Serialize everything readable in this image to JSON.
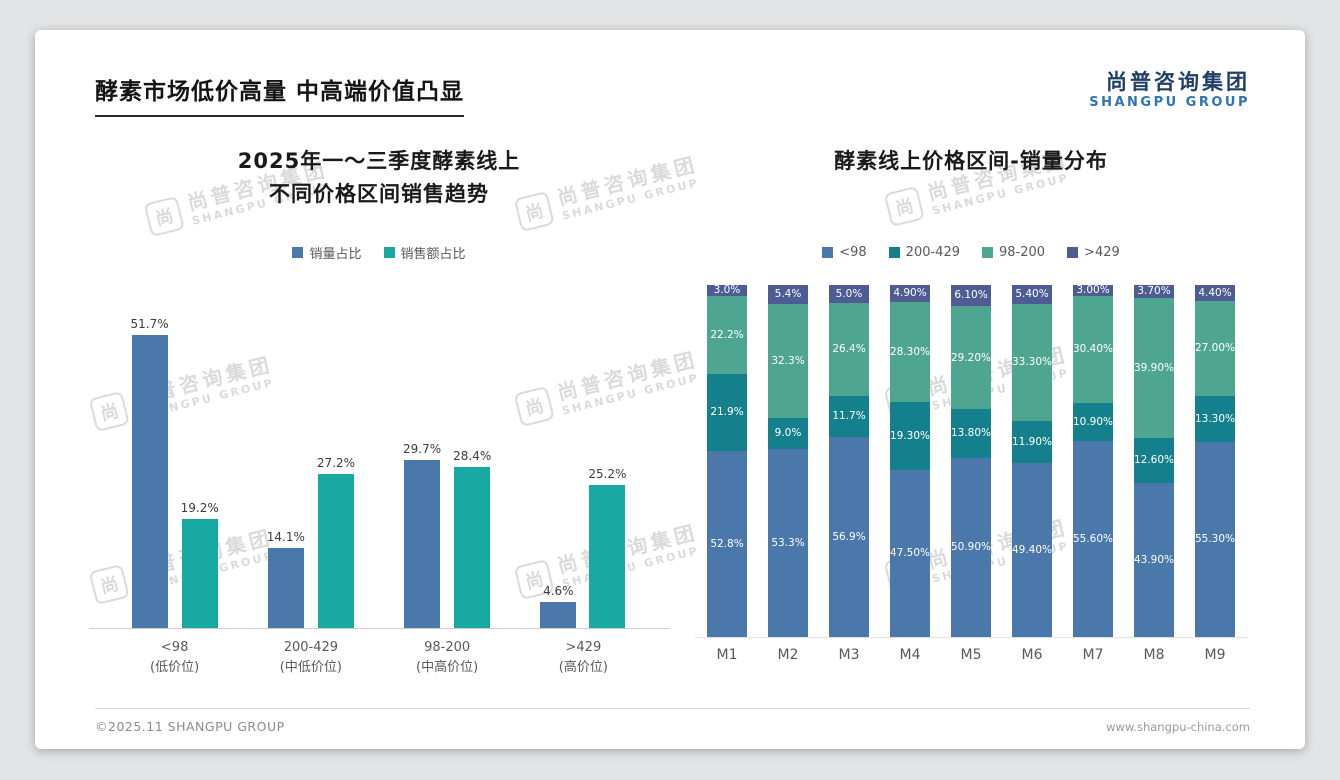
{
  "page": {
    "title": "酵素市场低价高量 中高端价值凸显",
    "logo": {
      "cn": "尚普咨询集团",
      "en": "SHANGPU GROUP"
    },
    "watermark": {
      "mark": "尚",
      "cn": "尚普咨询集团",
      "en": "SHANGPU GROUP"
    },
    "footer": {
      "left": "©2025.11 SHANGPU GROUP",
      "right": "www.shangpu-china.com"
    }
  },
  "colors": {
    "bar_blue": "#4a78ab",
    "bar_teal": "#17a9a2",
    "stack_blue": "#4a78ab",
    "stack_dark_teal": "#15808d",
    "stack_green": "#4fa690",
    "stack_purple": "#4e5c94"
  },
  "chart_data": [
    {
      "type": "bar",
      "stacked": false,
      "title_lines": [
        "2025年一～三季度酵素线上",
        "不同价格区间销售趋势"
      ],
      "categories": [
        [
          "<98",
          "(低价位)"
        ],
        [
          "200-429",
          "(中低价位)"
        ],
        [
          "98-200",
          "(中高价位)"
        ],
        [
          ">429",
          "(高价位)"
        ]
      ],
      "series": [
        {
          "name": "销量占比",
          "color": "#4a78ab",
          "values": [
            51.7,
            14.1,
            29.7,
            4.6
          ],
          "labels": [
            "51.7%",
            "14.1%",
            "29.7%",
            "4.6%"
          ]
        },
        {
          "name": "销售额占比",
          "color": "#17a9a2",
          "values": [
            19.2,
            27.2,
            28.4,
            25.2
          ],
          "labels": [
            "19.2%",
            "27.2%",
            "28.4%",
            "25.2%"
          ]
        }
      ],
      "ylim": [
        0,
        55
      ],
      "ylabel": "",
      "xlabel": "",
      "grid": false,
      "legend_position": "top"
    },
    {
      "type": "bar",
      "stacked": true,
      "title_lines": [
        "酵素线上价格区间-销量分布"
      ],
      "categories": [
        "M1",
        "M2",
        "M3",
        "M4",
        "M5",
        "M6",
        "M7",
        "M8",
        "M9"
      ],
      "series": [
        {
          "name": "<98",
          "color": "#4a78ab",
          "values": [
            52.8,
            53.3,
            56.9,
            47.5,
            50.9,
            49.4,
            55.6,
            43.9,
            55.3
          ],
          "labels": [
            "52.8%",
            "53.3%",
            "56.9%",
            "47.50%",
            "50.90%",
            "49.40%",
            "55.60%",
            "43.90%",
            "55.30%"
          ]
        },
        {
          "name": "200-429",
          "color": "#15808d",
          "values": [
            21.9,
            9.0,
            11.7,
            19.3,
            13.8,
            11.9,
            10.9,
            12.6,
            13.3
          ],
          "labels": [
            "21.9%",
            "9.0%",
            "11.7%",
            "19.30%",
            "13.80%",
            "11.90%",
            "10.90%",
            "12.60%",
            "13.30%"
          ]
        },
        {
          "name": "98-200",
          "color": "#4fa690",
          "values": [
            22.2,
            32.3,
            26.4,
            28.3,
            29.2,
            33.3,
            30.4,
            39.9,
            27.0
          ],
          "labels": [
            "22.2%",
            "32.3%",
            "26.4%",
            "28.30%",
            "29.20%",
            "33.30%",
            "30.40%",
            "39.90%",
            "27.00%"
          ]
        },
        {
          "name": ">429",
          "color": "#4e5c94",
          "values": [
            3.0,
            5.4,
            5.0,
            4.9,
            6.1,
            5.4,
            3.0,
            3.7,
            4.4
          ],
          "labels": [
            "3.0%",
            "5.4%",
            "5.0%",
            "4.90%",
            "6.10%",
            "5.40%",
            "3.00%",
            "3.70%",
            "4.40%"
          ]
        }
      ],
      "ylim": [
        0,
        100
      ],
      "ylabel": "",
      "xlabel": "",
      "grid": false,
      "legend_position": "top"
    }
  ]
}
